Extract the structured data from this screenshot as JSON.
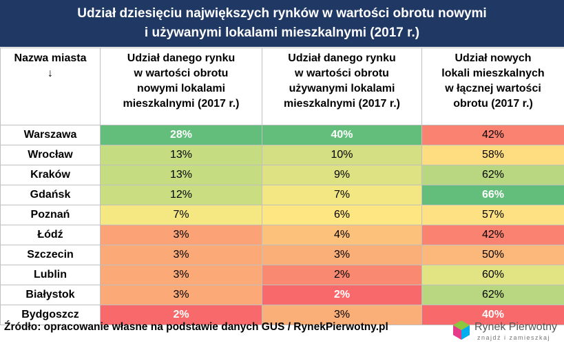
{
  "header": {
    "title_lines": [
      "Udział dziesięciu największych rynków w wartości obrotu nowymi",
      "i używanymi lokalami mieszkalnymi (2017 r.)"
    ]
  },
  "table": {
    "columns": [
      [
        "Nazwa miasta",
        "↓"
      ],
      [
        "Udział danego rynku",
        "w wartości obrotu",
        "nowymi lokalami",
        "mieszkalnymi (2017 r.)"
      ],
      [
        "Udział danego rynku",
        "w wartości obrotu",
        "używanymi lokalami",
        "mieszkalnymi (2017 r.)"
      ],
      [
        "Udział nowych",
        "lokali mieszkalnych",
        "w łącznej wartości",
        "obrotu (2017 r.)"
      ]
    ],
    "rows": [
      {
        "city": "Warszawa",
        "cells": [
          {
            "text": "28%",
            "fill": "#63be7b",
            "font_color": "#ffffff"
          },
          {
            "text": "40%",
            "fill": "#63be7b",
            "font_color": "#ffffff"
          },
          {
            "text": "42%",
            "fill": "#f98370",
            "font_color": "#000000"
          }
        ]
      },
      {
        "city": "Wrocław",
        "cells": [
          {
            "text": "13%",
            "fill": "#c5dc81",
            "font_color": "#000000"
          },
          {
            "text": "10%",
            "fill": "#d3df82",
            "font_color": "#000000"
          },
          {
            "text": "58%",
            "fill": "#fedd81",
            "font_color": "#000000"
          }
        ]
      },
      {
        "city": "Kraków",
        "cells": [
          {
            "text": "13%",
            "fill": "#c5dc81",
            "font_color": "#000000"
          },
          {
            "text": "9%",
            "fill": "#dfe283",
            "font_color": "#000000"
          },
          {
            "text": "62%",
            "fill": "#b9d780",
            "font_color": "#000000"
          }
        ]
      },
      {
        "city": "Gdańsk",
        "cells": [
          {
            "text": "12%",
            "fill": "#cbdd81",
            "font_color": "#000000"
          },
          {
            "text": "7%",
            "fill": "#f3e783",
            "font_color": "#000000"
          },
          {
            "text": "66%",
            "fill": "#63be7b",
            "font_color": "#ffffff"
          }
        ]
      },
      {
        "city": "Poznań",
        "cells": [
          {
            "text": "7%",
            "fill": "#f5e883",
            "font_color": "#000000"
          },
          {
            "text": "6%",
            "fill": "#fee683",
            "font_color": "#000000"
          },
          {
            "text": "57%",
            "fill": "#fee182",
            "font_color": "#000000"
          }
        ]
      },
      {
        "city": "Łódź",
        "cells": [
          {
            "text": "3%",
            "fill": "#fba276",
            "font_color": "#000000"
          },
          {
            "text": "4%",
            "fill": "#fcc27c",
            "font_color": "#000000"
          },
          {
            "text": "42%",
            "fill": "#f98370",
            "font_color": "#000000"
          }
        ]
      },
      {
        "city": "Szczecin",
        "cells": [
          {
            "text": "3%",
            "fill": "#fbaa77",
            "font_color": "#000000"
          },
          {
            "text": "3%",
            "fill": "#fbaf78",
            "font_color": "#000000"
          },
          {
            "text": "50%",
            "fill": "#fcb77a",
            "font_color": "#000000"
          }
        ]
      },
      {
        "city": "Lublin",
        "cells": [
          {
            "text": "3%",
            "fill": "#fbaa77",
            "font_color": "#000000"
          },
          {
            "text": "2%",
            "fill": "#f98a71",
            "font_color": "#000000"
          },
          {
            "text": "60%",
            "fill": "#e2e383",
            "font_color": "#000000"
          }
        ]
      },
      {
        "city": "Białystok",
        "cells": [
          {
            "text": "3%",
            "fill": "#fbaa77",
            "font_color": "#000000"
          },
          {
            "text": "2%",
            "fill": "#f8696b",
            "font_color": "#ffffff"
          },
          {
            "text": "62%",
            "fill": "#b9d780",
            "font_color": "#000000"
          }
        ]
      },
      {
        "city": "Bydgoszcz",
        "cells": [
          {
            "text": "2%",
            "fill": "#f8696b",
            "font_color": "#ffffff"
          },
          {
            "text": "3%",
            "fill": "#fbaf78",
            "font_color": "#000000"
          },
          {
            "text": "40%",
            "fill": "#f8696b",
            "font_color": "#ffffff"
          }
        ]
      }
    ]
  },
  "footer": {
    "source": "Źródło: opracowanie własne na podstawie danych GUS / RynekPierwotny.pl",
    "logo_name": "Rynek Pierwotny",
    "logo_tagline": "znajdź i zamieszkaj"
  }
}
